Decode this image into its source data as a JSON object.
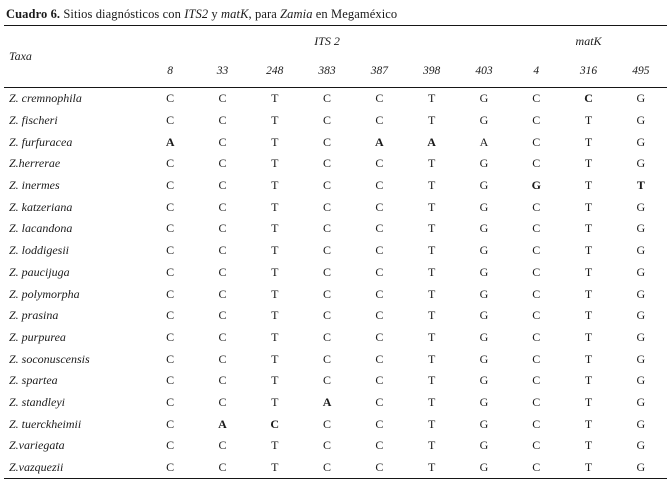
{
  "caption": {
    "segments": [
      {
        "text": "Cuadro 6.",
        "bold": true,
        "italic": false
      },
      {
        "text": " Sitios diagnósticos con ",
        "bold": false,
        "italic": false
      },
      {
        "text": "ITS2",
        "bold": false,
        "italic": true
      },
      {
        "text": " y ",
        "bold": false,
        "italic": false
      },
      {
        "text": "matK",
        "bold": false,
        "italic": true
      },
      {
        "text": ", para ",
        "bold": false,
        "italic": false
      },
      {
        "text": "Zamia",
        "bold": false,
        "italic": true
      },
      {
        "text": " en Megaméxico",
        "bold": false,
        "italic": false
      }
    ]
  },
  "table": {
    "taxa_header": "Taxa",
    "groups": [
      {
        "label": "ITS 2",
        "span": 7
      },
      {
        "label": "matK",
        "span": 3
      }
    ],
    "positions": [
      "8",
      "33",
      "248",
      "383",
      "387",
      "398",
      "403",
      "4",
      "316",
      "495"
    ],
    "rows": [
      {
        "taxon": "Z. cremnophila",
        "values": [
          "C",
          "C",
          "T",
          "C",
          "C",
          "T",
          "G",
          "C",
          "C",
          "G"
        ],
        "bold_indices": [
          8
        ]
      },
      {
        "taxon": "Z. fischeri",
        "values": [
          "C",
          "C",
          "T",
          "C",
          "C",
          "T",
          "G",
          "C",
          "T",
          "G"
        ],
        "bold_indices": []
      },
      {
        "taxon": "Z. furfuracea",
        "values": [
          "A",
          "C",
          "T",
          "C",
          "A",
          "A",
          "A",
          "C",
          "T",
          "G"
        ],
        "bold_indices": [
          0,
          4,
          5
        ]
      },
      {
        "taxon": "Z.herrerae",
        "values": [
          "C",
          "C",
          "T",
          "C",
          "C",
          "T",
          "G",
          "C",
          "T",
          "G"
        ],
        "bold_indices": []
      },
      {
        "taxon": "Z. inermes",
        "values": [
          "C",
          "C",
          "T",
          "C",
          "C",
          "T",
          "G",
          "G",
          "T",
          "T"
        ],
        "bold_indices": [
          7,
          9
        ]
      },
      {
        "taxon": "Z. katzeriana",
        "values": [
          "C",
          "C",
          "T",
          "C",
          "C",
          "T",
          "G",
          "C",
          "T",
          "G"
        ],
        "bold_indices": []
      },
      {
        "taxon": "Z. lacandona",
        "values": [
          "C",
          "C",
          "T",
          "C",
          "C",
          "T",
          "G",
          "C",
          "T",
          "G"
        ],
        "bold_indices": []
      },
      {
        "taxon": "Z. loddigesii",
        "values": [
          "C",
          "C",
          "T",
          "C",
          "C",
          "T",
          "G",
          "C",
          "T",
          "G"
        ],
        "bold_indices": []
      },
      {
        "taxon": "Z. paucijuga",
        "values": [
          "C",
          "C",
          "T",
          "C",
          "C",
          "T",
          "G",
          "C",
          "T",
          "G"
        ],
        "bold_indices": []
      },
      {
        "taxon": "Z. polymorpha",
        "values": [
          "C",
          "C",
          "T",
          "C",
          "C",
          "T",
          "G",
          "C",
          "T",
          "G"
        ],
        "bold_indices": []
      },
      {
        "taxon": "Z. prasina",
        "values": [
          "C",
          "C",
          "T",
          "C",
          "C",
          "T",
          "G",
          "C",
          "T",
          "G"
        ],
        "bold_indices": []
      },
      {
        "taxon": "Z. purpurea",
        "values": [
          "C",
          "C",
          "T",
          "C",
          "C",
          "T",
          "G",
          "C",
          "T",
          "G"
        ],
        "bold_indices": []
      },
      {
        "taxon": "Z. soconuscensis",
        "values": [
          "C",
          "C",
          "T",
          "C",
          "C",
          "T",
          "G",
          "C",
          "T",
          "G"
        ],
        "bold_indices": []
      },
      {
        "taxon": "Z. spartea",
        "values": [
          "C",
          "C",
          "T",
          "C",
          "C",
          "T",
          "G",
          "C",
          "T",
          "G"
        ],
        "bold_indices": []
      },
      {
        "taxon": "Z. standleyi",
        "values": [
          "C",
          "C",
          "T",
          "A",
          "C",
          "T",
          "G",
          "C",
          "T",
          "G"
        ],
        "bold_indices": [
          3
        ]
      },
      {
        "taxon": "Z. tuerckheimii",
        "values": [
          "C",
          "A",
          "C",
          "C",
          "C",
          "T",
          "G",
          "C",
          "T",
          "G"
        ],
        "bold_indices": [
          1,
          2
        ]
      },
      {
        "taxon": "Z.variegata",
        "values": [
          "C",
          "C",
          "T",
          "C",
          "C",
          "T",
          "G",
          "C",
          "T",
          "G"
        ],
        "bold_indices": []
      },
      {
        "taxon": "Z.vazquezii",
        "values": [
          "C",
          "C",
          "T",
          "C",
          "C",
          "T",
          "G",
          "C",
          "T",
          "G"
        ],
        "bold_indices": []
      }
    ]
  },
  "colors": {
    "text": "#1a1a1a",
    "background": "#ffffff",
    "rule": "#161616"
  }
}
